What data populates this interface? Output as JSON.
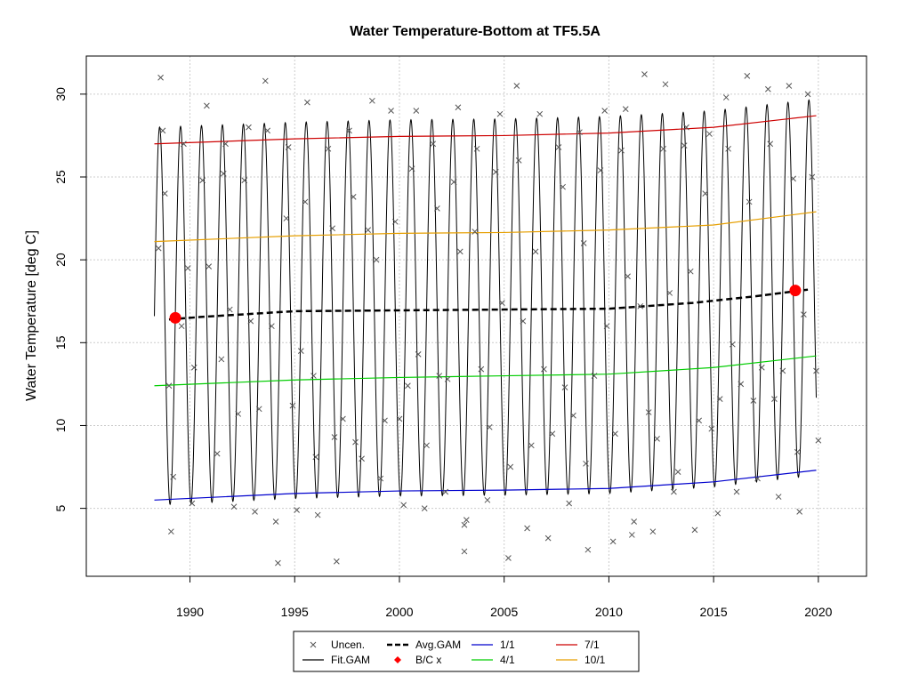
{
  "chart_data": {
    "type": "line",
    "title": "Water Temperature-Bottom at TF5.5A",
    "xlabel": "",
    "ylabel": "Water Temperature [deg C]",
    "xlim": [
      1985.05,
      2022.3
    ],
    "ylim": [
      0.9,
      32.3
    ],
    "x_ticks": [
      1990,
      1995,
      2000,
      2005,
      2010,
      2015,
      2020
    ],
    "y_ticks": [
      5,
      10,
      15,
      20,
      25,
      30
    ],
    "grid": true,
    "legend_position": "bottom",
    "fit_gam": {
      "start": 1988.3,
      "end": 2019.9,
      "seasonal_amplitude": 11.5,
      "peak_fraction": 0.55,
      "color": "#000000"
    },
    "series": [
      {
        "name": "1/1",
        "color": "#0000cd",
        "x": [
          1988.3,
          1995,
          2000,
          2005,
          2010,
          2015,
          2019.9
        ],
        "y": [
          5.5,
          5.9,
          6.05,
          6.1,
          6.2,
          6.6,
          7.3
        ]
      },
      {
        "name": "4/1",
        "color": "#00cd00",
        "x": [
          1988.3,
          1995,
          2000,
          2005,
          2010,
          2015,
          2019.9
        ],
        "y": [
          12.4,
          12.75,
          12.9,
          13.0,
          13.1,
          13.5,
          14.2
        ]
      },
      {
        "name": "7/1",
        "color": "#cd0000",
        "x": [
          1988.3,
          1995,
          2000,
          2005,
          2010,
          2015,
          2019.9
        ],
        "y": [
          27.0,
          27.3,
          27.45,
          27.5,
          27.65,
          28.0,
          28.7
        ]
      },
      {
        "name": "10/1",
        "color": "#e69f00",
        "x": [
          1988.3,
          1995,
          2000,
          2005,
          2010,
          2015,
          2019.9
        ],
        "y": [
          21.1,
          21.45,
          21.6,
          21.65,
          21.8,
          22.1,
          22.9
        ]
      },
      {
        "name": "Avg.GAM",
        "color": "#000000",
        "dashed": true,
        "x": [
          1989.0,
          1990.5,
          1995.0,
          2000.0,
          2005.0,
          2010.0,
          2014.0,
          2017.0,
          2019.5
        ],
        "y": [
          16.4,
          16.55,
          16.9,
          16.95,
          17.0,
          17.05,
          17.4,
          17.8,
          18.2
        ]
      }
    ],
    "bc_points": [
      {
        "x": 1989.3,
        "y": 16.5
      },
      {
        "x": 2018.9,
        "y": 18.15
      }
    ],
    "uncensored": [
      [
        1988.6,
        31.0
      ],
      [
        1988.7,
        27.8
      ],
      [
        1988.5,
        20.7
      ],
      [
        1988.8,
        24.0
      ],
      [
        1989.0,
        12.4
      ],
      [
        1989.2,
        6.9
      ],
      [
        1989.1,
        3.6
      ],
      [
        1989.6,
        16.0
      ],
      [
        1989.7,
        27.0
      ],
      [
        1989.9,
        19.5
      ],
      [
        1990.1,
        5.3
      ],
      [
        1990.2,
        13.5
      ],
      [
        1990.6,
        24.8
      ],
      [
        1990.8,
        29.3
      ],
      [
        1990.9,
        19.6
      ],
      [
        1991.3,
        8.3
      ],
      [
        1991.5,
        14.0
      ],
      [
        1991.6,
        25.2
      ],
      [
        1991.7,
        27.0
      ],
      [
        1991.9,
        17.0
      ],
      [
        1992.1,
        5.1
      ],
      [
        1992.3,
        10.7
      ],
      [
        1992.6,
        24.8
      ],
      [
        1992.8,
        28.0
      ],
      [
        1992.9,
        16.3
      ],
      [
        1993.1,
        4.8
      ],
      [
        1993.3,
        11.0
      ],
      [
        1993.6,
        30.8
      ],
      [
        1993.7,
        27.8
      ],
      [
        1993.9,
        16.0
      ],
      [
        1994.1,
        4.2
      ],
      [
        1994.2,
        1.7
      ],
      [
        1994.6,
        22.5
      ],
      [
        1994.7,
        26.8
      ],
      [
        1994.9,
        11.2
      ],
      [
        1995.1,
        4.9
      ],
      [
        1995.3,
        14.5
      ],
      [
        1995.5,
        23.5
      ],
      [
        1995.6,
        29.5
      ],
      [
        1995.9,
        13.0
      ],
      [
        1996.0,
        8.1
      ],
      [
        1996.1,
        4.6
      ],
      [
        1996.6,
        26.7
      ],
      [
        1996.8,
        21.9
      ],
      [
        1996.9,
        9.3
      ],
      [
        1997.0,
        1.8
      ],
      [
        1997.3,
        10.4
      ],
      [
        1997.6,
        27.8
      ],
      [
        1997.8,
        23.8
      ],
      [
        1997.9,
        9.0
      ],
      [
        1998.2,
        8.0
      ],
      [
        1998.5,
        21.8
      ],
      [
        1998.7,
        29.6
      ],
      [
        1998.9,
        20.0
      ],
      [
        1999.1,
        6.8
      ],
      [
        1999.3,
        10.3
      ],
      [
        1999.6,
        29.0
      ],
      [
        1999.8,
        22.3
      ],
      [
        2000.0,
        10.4
      ],
      [
        2000.2,
        5.2
      ],
      [
        2000.4,
        12.4
      ],
      [
        2000.6,
        25.5
      ],
      [
        2000.8,
        29.0
      ],
      [
        2000.9,
        14.3
      ],
      [
        2001.2,
        5.0
      ],
      [
        2001.3,
        8.8
      ],
      [
        2001.6,
        27.0
      ],
      [
        2001.8,
        23.1
      ],
      [
        2001.9,
        13.0
      ],
      [
        2002.2,
        6.0
      ],
      [
        2002.3,
        12.8
      ],
      [
        2002.6,
        24.7
      ],
      [
        2002.8,
        29.2
      ],
      [
        2002.9,
        20.5
      ],
      [
        2003.1,
        4.0
      ],
      [
        2003.2,
        4.3
      ],
      [
        2003.1,
        2.4
      ],
      [
        2003.6,
        21.7
      ],
      [
        2003.7,
        26.7
      ],
      [
        2003.9,
        13.4
      ],
      [
        2004.2,
        5.5
      ],
      [
        2004.3,
        9.9
      ],
      [
        2004.6,
        25.3
      ],
      [
        2004.8,
        28.8
      ],
      [
        2004.9,
        17.4
      ],
      [
        2005.2,
        2.0
      ],
      [
        2005.3,
        7.5
      ],
      [
        2005.6,
        30.5
      ],
      [
        2005.7,
        26.0
      ],
      [
        2005.9,
        16.3
      ],
      [
        2006.1,
        3.8
      ],
      [
        2006.3,
        8.8
      ],
      [
        2006.5,
        20.5
      ],
      [
        2006.7,
        28.8
      ],
      [
        2006.9,
        13.4
      ],
      [
        2007.1,
        3.2
      ],
      [
        2007.3,
        9.5
      ],
      [
        2007.6,
        26.8
      ],
      [
        2007.8,
        24.4
      ],
      [
        2007.9,
        12.3
      ],
      [
        2008.1,
        5.3
      ],
      [
        2008.3,
        10.6
      ],
      [
        2008.6,
        27.7
      ],
      [
        2008.8,
        21.0
      ],
      [
        2008.9,
        7.7
      ],
      [
        2009.0,
        2.5
      ],
      [
        2009.3,
        13.0
      ],
      [
        2009.6,
        25.4
      ],
      [
        2009.8,
        29.0
      ],
      [
        2009.9,
        16.0
      ],
      [
        2010.2,
        3.0
      ],
      [
        2010.3,
        9.5
      ],
      [
        2010.6,
        26.6
      ],
      [
        2010.8,
        29.1
      ],
      [
        2010.9,
        19.0
      ],
      [
        2011.1,
        3.4
      ],
      [
        2011.2,
        4.2
      ],
      [
        2011.5,
        17.2
      ],
      [
        2011.7,
        31.2
      ],
      [
        2011.9,
        10.8
      ],
      [
        2012.1,
        3.6
      ],
      [
        2012.3,
        9.2
      ],
      [
        2012.6,
        26.7
      ],
      [
        2012.7,
        30.6
      ],
      [
        2012.9,
        18.0
      ],
      [
        2013.1,
        6.0
      ],
      [
        2013.3,
        7.2
      ],
      [
        2013.6,
        26.9
      ],
      [
        2013.7,
        28.0
      ],
      [
        2013.9,
        19.3
      ],
      [
        2014.1,
        3.7
      ],
      [
        2014.3,
        10.3
      ],
      [
        2014.6,
        24.0
      ],
      [
        2014.8,
        27.6
      ],
      [
        2014.9,
        9.8
      ],
      [
        2015.2,
        4.7
      ],
      [
        2015.3,
        11.6
      ],
      [
        2015.6,
        29.8
      ],
      [
        2015.7,
        26.7
      ],
      [
        2015.9,
        14.9
      ],
      [
        2016.1,
        6.0
      ],
      [
        2016.3,
        12.5
      ],
      [
        2016.6,
        31.1
      ],
      [
        2016.7,
        23.5
      ],
      [
        2016.9,
        11.5
      ],
      [
        2017.1,
        6.8
      ],
      [
        2017.3,
        13.5
      ],
      [
        2017.6,
        30.3
      ],
      [
        2017.7,
        27.0
      ],
      [
        2017.9,
        11.6
      ],
      [
        2018.1,
        5.7
      ],
      [
        2018.3,
        13.3
      ],
      [
        2018.6,
        30.5
      ],
      [
        2018.8,
        24.9
      ],
      [
        2019.0,
        8.4
      ],
      [
        2019.1,
        4.8
      ],
      [
        2019.3,
        16.7
      ],
      [
        2019.5,
        30.0
      ],
      [
        2019.7,
        25.0
      ],
      [
        2019.9,
        13.3
      ],
      [
        2020.0,
        9.1
      ]
    ],
    "legend": {
      "items": [
        {
          "label": "Uncen.",
          "kind": "cross",
          "color": "#555555"
        },
        {
          "label": "Avg.GAM",
          "kind": "dashed",
          "color": "#000000"
        },
        {
          "label": "1/1",
          "kind": "line",
          "color": "#0000cd"
        },
        {
          "label": "7/1",
          "kind": "line",
          "color": "#cd0000"
        },
        {
          "label": "Fit.GAM",
          "kind": "line",
          "color": "#000000"
        },
        {
          "label": "B/C x",
          "kind": "diamond",
          "color": "#ff0000"
        },
        {
          "label": "4/1",
          "kind": "line",
          "color": "#00cd00"
        },
        {
          "label": "10/1",
          "kind": "line",
          "color": "#e69f00"
        }
      ]
    }
  }
}
